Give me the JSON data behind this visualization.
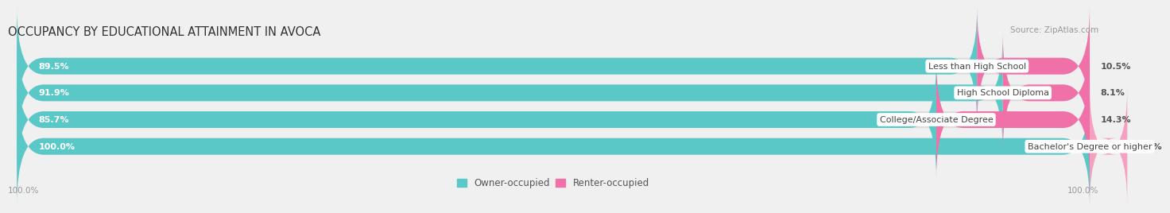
{
  "title": "OCCUPANCY BY EDUCATIONAL ATTAINMENT IN AVOCA",
  "source": "Source: ZipAtlas.com",
  "categories": [
    "Less than High School",
    "High School Diploma",
    "College/Associate Degree",
    "Bachelor's Degree or higher"
  ],
  "owner_values": [
    89.5,
    91.9,
    85.7,
    100.0
  ],
  "renter_values": [
    10.5,
    8.1,
    14.3,
    0.0
  ],
  "owner_color": "#5BC8C8",
  "renter_color": "#F070A8",
  "renter_color_light": "#F5A0C0",
  "owner_label": "Owner-occupied",
  "renter_label": "Renter-occupied",
  "bg_color": "#f0f0f0",
  "bar_bg_color": "#dcdcdc",
  "title_fontsize": 10.5,
  "label_fontsize": 8.0,
  "bar_height": 0.62,
  "x_left_label": "100.0%",
  "x_right_label": "100.0%"
}
